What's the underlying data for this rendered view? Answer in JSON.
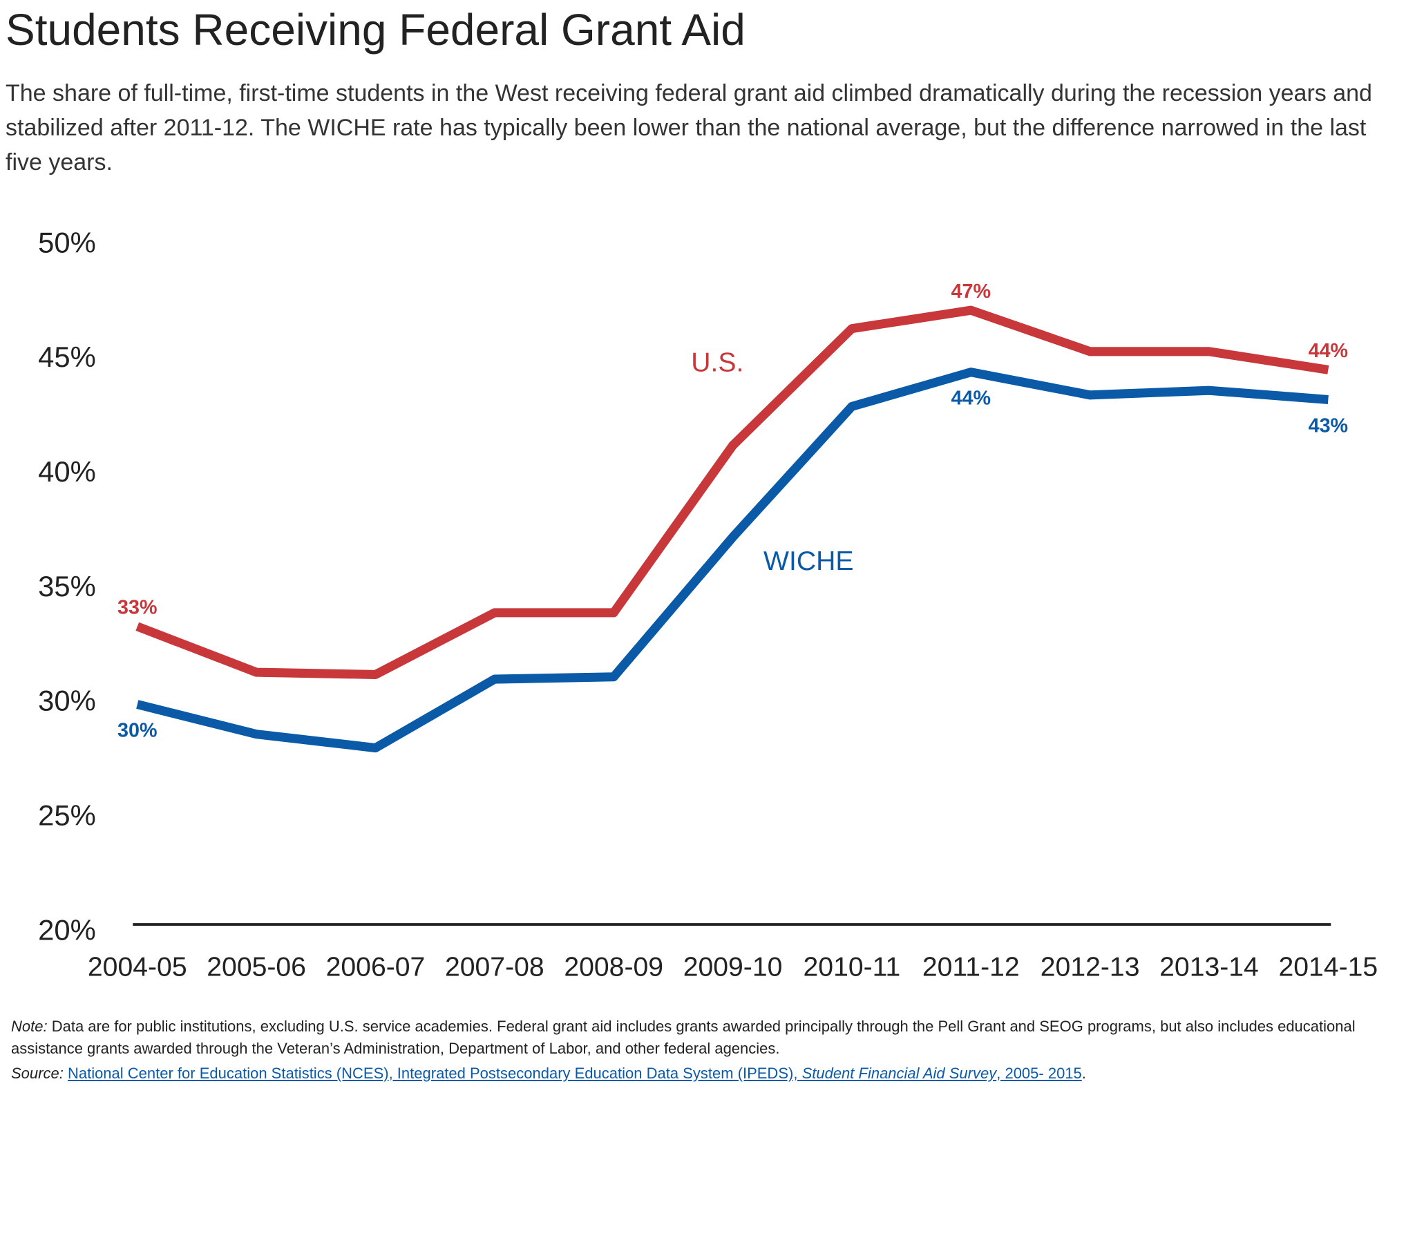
{
  "title": "Students Receiving Federal Grant Aid",
  "subtitle": "The share of full-time, first-time students in the West receiving federal grant aid climbed dramatically during the recession years and stabilized after 2011-12. The WICHE rate has typically been lower than the national average, but the difference narrowed in the last five years.",
  "chart_data": {
    "type": "line",
    "categories": [
      "2004-05",
      "2005-06",
      "2006-07",
      "2007-08",
      "2008-09",
      "2009-10",
      "2010-11",
      "2011-12",
      "2012-13",
      "2013-14",
      "2014-15"
    ],
    "series": [
      {
        "name": "U.S.",
        "color": "#c8383a",
        "values": [
          33.2,
          31.2,
          31.1,
          33.8,
          33.8,
          41.1,
          46.2,
          47.0,
          45.2,
          45.2,
          44.4
        ],
        "value_labels": [
          "33%",
          null,
          null,
          null,
          null,
          null,
          null,
          "47%",
          null,
          null,
          "44%"
        ]
      },
      {
        "name": "WICHE",
        "color": "#0a5aa8",
        "values": [
          29.8,
          28.5,
          27.9,
          30.9,
          31.0,
          37.1,
          42.8,
          44.3,
          43.3,
          43.5,
          43.1
        ],
        "value_labels": [
          "30%",
          null,
          null,
          null,
          null,
          null,
          null,
          "44%",
          null,
          null,
          "43%"
        ]
      }
    ],
    "ylim": [
      20,
      50
    ],
    "yticks": [
      {
        "value": 20,
        "label": "20%"
      },
      {
        "value": 25,
        "label": "25%"
      },
      {
        "value": 30,
        "label": "30%"
      },
      {
        "value": 35,
        "label": "35%"
      },
      {
        "value": 40,
        "label": "40%"
      },
      {
        "value": 45,
        "label": "45%"
      },
      {
        "value": 50,
        "label": "50%"
      }
    ],
    "grid": false
  },
  "note": {
    "label": "Note:",
    "text": "Data are for public institutions, excluding U.S. service academies. Federal grant aid includes grants awarded principally through the Pell Grant and SEOG programs, but also includes educational assistance grants awarded through the Veteran’s Administration, Department of Labor, and other federal agencies."
  },
  "source": {
    "label": "Source:",
    "link": "National Center for Education Statistics (NCES), Integrated Postsecondary Education Data System (IPEDS),",
    "link_italic": "Student Financial Aid Survey",
    "link_end": ", 2005- 2015",
    "end": "."
  }
}
